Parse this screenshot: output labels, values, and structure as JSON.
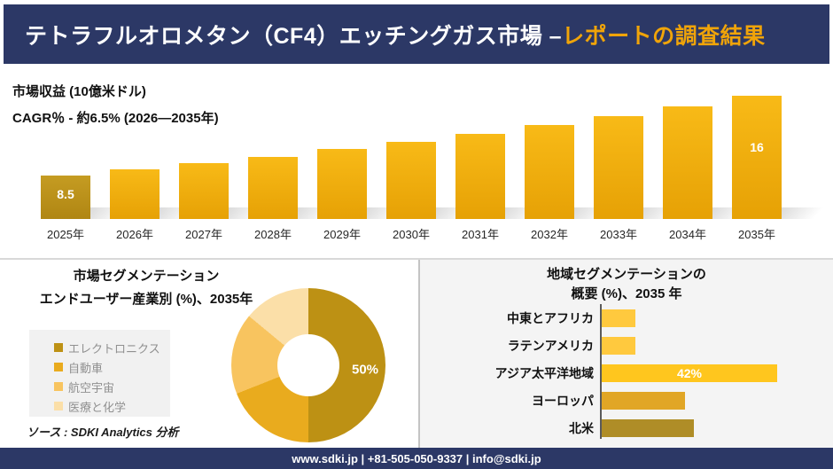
{
  "header": {
    "title_main": "テトラフルオロメタン（CF4）エッチングガス市場 –",
    "title_accent": "レポートの調査結果"
  },
  "revenue_section": {
    "title": "市場収益 (10億米ドル)",
    "cagr_line": "CAGR％ - 約6.5% (2026―2035年)"
  },
  "segmentation_section": {
    "title_line1": "市場セグメンテーション",
    "title_line2": "エンドユーザー産業別 (%)、2035年",
    "source": "ソース : SDKI Analytics 分析"
  },
  "regional_section": {
    "title_line1": "地域セグメンテーションの",
    "title_line2": "概要 (%)、2035 年"
  },
  "footer": {
    "text": "www.sdki.jp | +81-505-050-9337 | info@sdki.jp"
  },
  "colors": {
    "navy": "#2c3866",
    "accent": "#f0a409",
    "bar_top": "#f8ba17",
    "bar_bottom": "#e6a105",
    "bar_first_top": "#c59c22",
    "bar_first_bottom": "#b08613",
    "divider": "#d8d8d8",
    "panel_bg": "#f4f4f4",
    "legend_bg": "#f1f1f1",
    "legend_text": "#909090",
    "axis": "#5a5a5a"
  },
  "chart_data": [
    {
      "id": "market_revenue",
      "type": "bar",
      "title": "市場収益 (10億米ドル)",
      "subtitle": "CAGR％ - 約6.5% (2026―2035年)",
      "categories": [
        "2025年",
        "2026年",
        "2027年",
        "2028年",
        "2029年",
        "2030年",
        "2031年",
        "2032年",
        "2033年",
        "2034年",
        "2035年"
      ],
      "values": [
        8.5,
        9.05,
        9.64,
        10.27,
        10.94,
        11.65,
        12.41,
        13.22,
        14.08,
        15.0,
        16.0
      ],
      "bar_labels": [
        "8.5",
        "",
        "",
        "",
        "",
        "",
        "",
        "",
        "",
        "",
        "16"
      ],
      "ylabel": "10億米ドル",
      "grid": false,
      "legend": false
    },
    {
      "id": "end_user_segmentation",
      "type": "pie",
      "title": "市場セグメンテーション エンドユーザー産業別 (%)、2035年",
      "categories": [
        "エレクトロニクス",
        "自動車",
        "航空宇宙",
        "医療と化学"
      ],
      "values": [
        50,
        19,
        17,
        14
      ],
      "slice_labels": [
        "50%",
        "",
        "",
        ""
      ],
      "colors": [
        "#bd9114",
        "#e9ab1e",
        "#f8c45f",
        "#fbdfa8"
      ],
      "legend_position": "left",
      "donut": true
    },
    {
      "id": "regional_segmentation",
      "type": "bar",
      "orientation": "horizontal",
      "title": "地域セグメンテーションの概要 (%)、2035 年",
      "categories": [
        "中東とアフリカ",
        "ラテンアメリカ",
        "アジア太平洋地域",
        "ヨーロッパ",
        "北米"
      ],
      "values": [
        8,
        8,
        42,
        20,
        22
      ],
      "bar_labels": [
        "",
        "",
        "42%",
        "",
        ""
      ],
      "colors": [
        "#ffc93e",
        "#ffc93e",
        "#ffc61e",
        "#e1a626",
        "#af8d27"
      ],
      "xlim": [
        0,
        50
      ],
      "grid": false
    }
  ]
}
